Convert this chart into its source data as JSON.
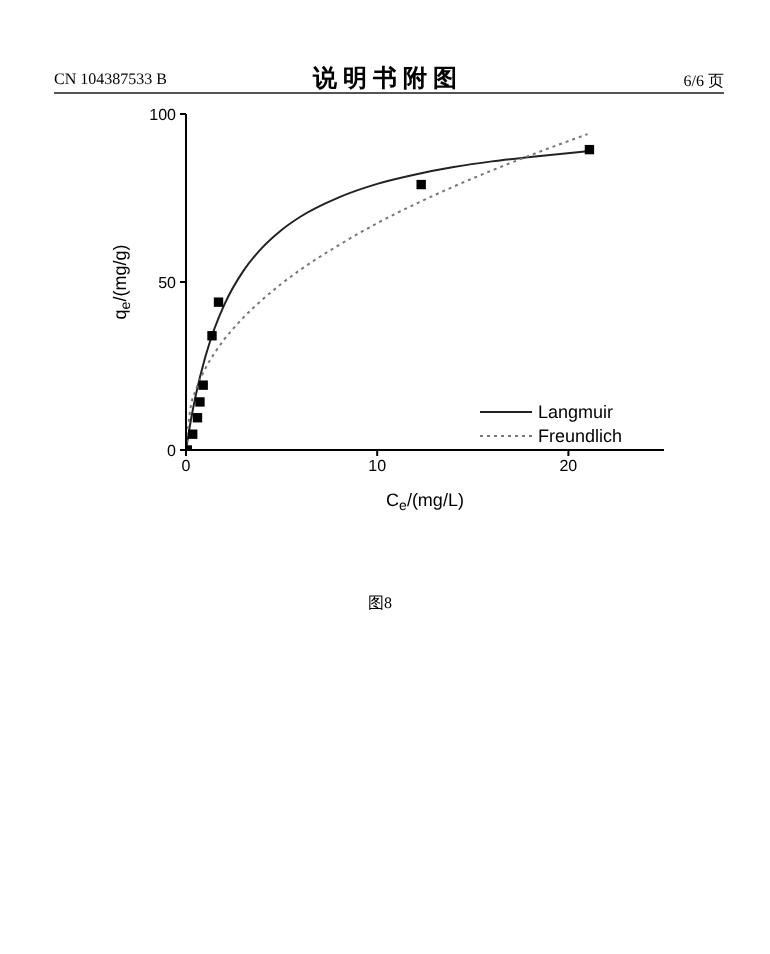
{
  "chart_data": {
    "type": "scatter",
    "xlabel": "C$_{e}$/(mg/L)",
    "ylabel": "q$_{e}$/(mg/g)",
    "annotations": [
      "CN 104387533 B",
      "说 明 书 附 图",
      "6/6 页",
      "图8"
    ],
    "xlim": [
      0,
      25
    ],
    "xticks": [
      0,
      10,
      20
    ],
    "ylim": [
      0,
      100
    ],
    "yticks": [
      0,
      50,
      100
    ],
    "grid": false,
    "legend": "right",
    "marker": "square",
    "series": [
      {
        "color": "#000000",
        "x": [
          0.07,
          0.35,
          0.6,
          0.73,
          0.9,
          1.36,
          1.7,
          12.3,
          21.1
        ],
        "values": [
          0,
          4.7,
          9.6,
          14.3,
          19.3,
          34,
          44,
          79,
          89.4
        ]
      },
      {
        "type": "line",
        "name": "Langmuir",
        "color": "#222222",
        "line_style": "solid",
        "marker": "none",
        "x": [
          0,
          0.25,
          0.5,
          1,
          1.5,
          2,
          3,
          4,
          5,
          6,
          8,
          10,
          12,
          14,
          16,
          18,
          21
        ],
        "values": [
          0,
          8.7,
          16,
          27.5,
          36.3,
          43.2,
          53.3,
          60.3,
          65.5,
          69.5,
          75.2,
          79.2,
          82,
          84.2,
          85.9,
          87.2,
          88.9
        ]
      },
      {
        "type": "line",
        "name": "Freundlich",
        "color": "#777777",
        "line_style": "dotted",
        "marker": "none",
        "x": [
          0,
          0.25,
          0.5,
          1,
          1.5,
          2,
          3,
          4,
          5,
          6,
          8,
          10,
          12,
          14,
          16,
          18,
          21
        ],
        "values": [
          0,
          13,
          17.7,
          24.1,
          28.9,
          32.9,
          39.4,
          44.8,
          49.5,
          53.7,
          61,
          67.5,
          73.2,
          78.4,
          83.2,
          87.7,
          94
        ]
      }
    ]
  }
}
